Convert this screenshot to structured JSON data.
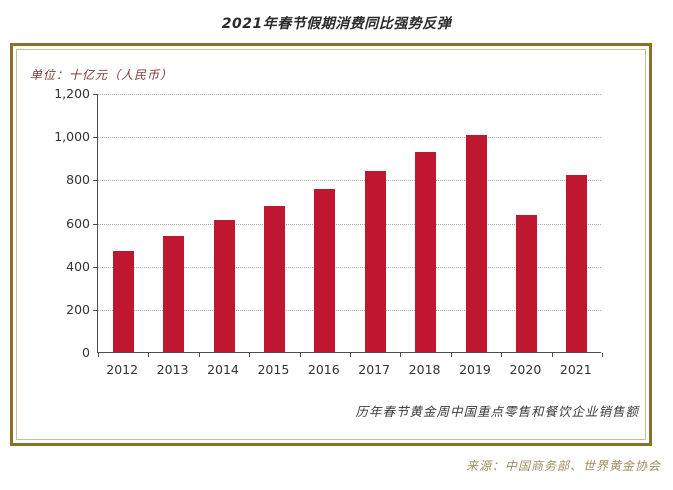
{
  "page": {
    "title": "2021年春节假期消费同比强势反弹",
    "unit_label": "单位：十亿元（人民币）",
    "caption": "历年春节黄金周中国重点零售和餐饮企业销售额",
    "source": "来源：中国商务部、世界黄金协会"
  },
  "colors": {
    "bar": "#c01731",
    "frame_outer": "#8a7125",
    "frame_inner": "#cbc095",
    "axis": "#4d4d4d",
    "gridline": "#ababab",
    "unit_text": "#7b3b3c",
    "source_text": "#a08e5e",
    "axis_text": "#333333",
    "title_text": "#2b2b2b"
  },
  "chart_data": {
    "type": "bar",
    "title": "2021年春节假期消费同比强势反弹",
    "unit": "十亿元（人民币）",
    "categories": [
      "2012",
      "2013",
      "2014",
      "2015",
      "2016",
      "2017",
      "2018",
      "2019",
      "2020",
      "2021"
    ],
    "values": [
      470,
      539,
      610,
      678,
      754,
      840,
      926,
      1005,
      635,
      821
    ],
    "ylim": [
      0,
      1200
    ],
    "ytick_interval": 200,
    "ytick_labels": [
      "0",
      "200",
      "400",
      "600",
      "800",
      "1,000",
      "1,200"
    ],
    "grid": "horizontal-dotted",
    "legend": "none",
    "caption": "历年春节黄金周中国重点零售和餐饮企业销售额",
    "source": "来源：中国商务部、世界黄金协会"
  }
}
